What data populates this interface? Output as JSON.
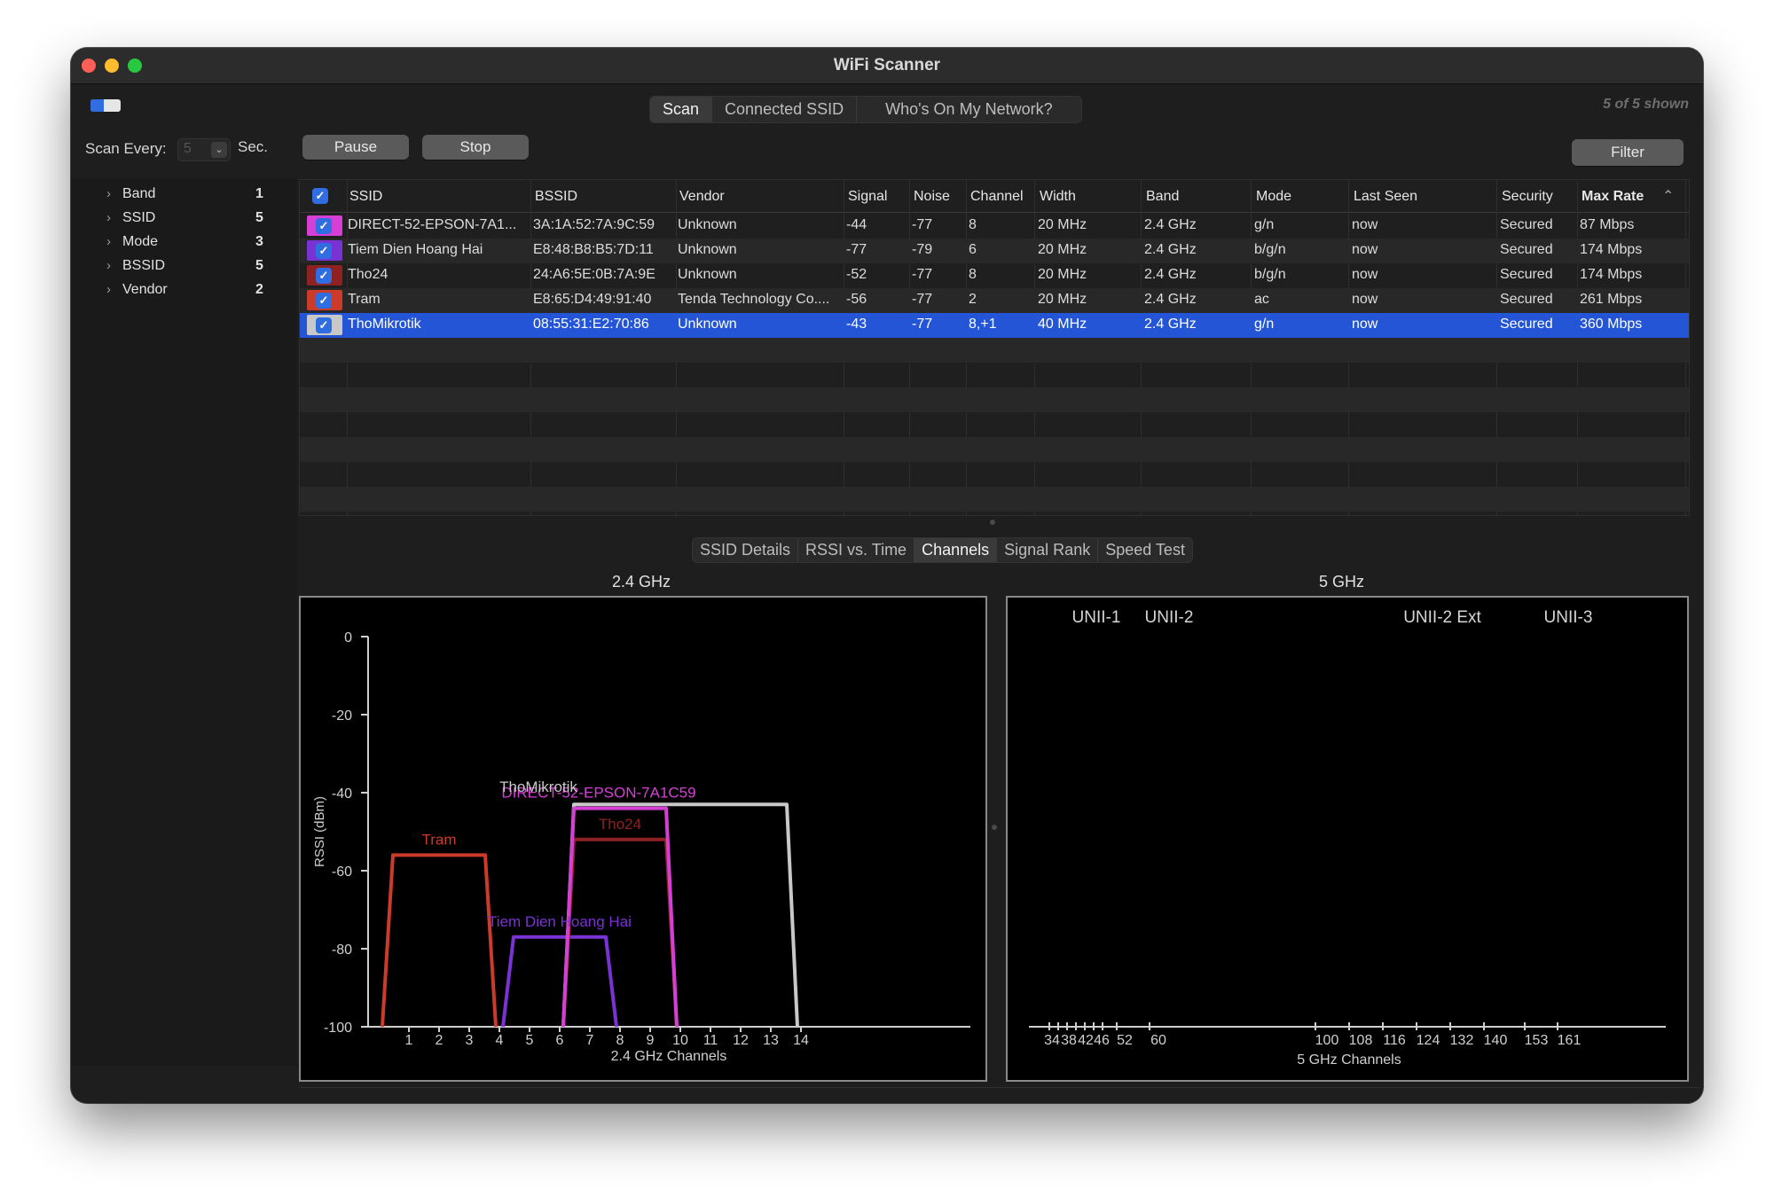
{
  "window": {
    "title": "WiFi Scanner"
  },
  "tabs": [
    {
      "label": "Scan",
      "active": true
    },
    {
      "label": "Connected SSID",
      "active": false
    },
    {
      "label": "Who's On My Network?",
      "active": false
    }
  ],
  "shown_count": "5 of 5 shown",
  "scan": {
    "label": "Scan Every:",
    "value": "5",
    "unit": "Sec."
  },
  "buttons": {
    "pause": "Pause",
    "stop": "Stop",
    "filter": "Filter"
  },
  "facets": [
    {
      "label": "Band",
      "count": "1"
    },
    {
      "label": "SSID",
      "count": "5"
    },
    {
      "label": "Mode",
      "count": "3"
    },
    {
      "label": "BSSID",
      "count": "5"
    },
    {
      "label": "Vendor",
      "count": "2"
    }
  ],
  "table": {
    "columns": [
      "SSID",
      "BSSID",
      "Vendor",
      "Signal",
      "Noise",
      "Channel",
      "Width",
      "Band",
      "Mode",
      "Last Seen",
      "Security",
      "Max Rate"
    ],
    "sorted_column": "Max Rate",
    "rows": [
      {
        "color": "#d63fd6",
        "cells": [
          "DIRECT-52-EPSON-7A1...",
          "3A:1A:52:7A:9C:59",
          "Unknown",
          "-44",
          "-77",
          "8",
          "20 MHz",
          "2.4 GHz",
          "g/n",
          "now",
          "Secured",
          "87 Mbps"
        ]
      },
      {
        "color": "#7b32d4",
        "cells": [
          "Tiem Dien Hoang Hai",
          "E8:48:B8:B5:7D:11",
          "Unknown",
          "-77",
          "-79",
          "6",
          "20 MHz",
          "2.4 GHz",
          "b/g/n",
          "now",
          "Secured",
          "174 Mbps"
        ]
      },
      {
        "color": "#8e2222",
        "cells": [
          "Tho24",
          "24:A6:5E:0B:7A:9E",
          "Unknown",
          "-52",
          "-77",
          "8",
          "20 MHz",
          "2.4 GHz",
          "b/g/n",
          "now",
          "Secured",
          "174 Mbps"
        ]
      },
      {
        "color": "#cc3a2a",
        "cells": [
          "Tram",
          "E8:65:D4:49:91:40",
          "Tenda Technology Co....",
          "-56",
          "-77",
          "2",
          "20 MHz",
          "2.4 GHz",
          "ac",
          "now",
          "Secured",
          "261 Mbps"
        ]
      },
      {
        "color": "#c8c8c8",
        "selected": true,
        "cells": [
          "ThoMikrotik",
          "08:55:31:E2:70:86",
          "Unknown",
          "-43",
          "-77",
          "8,+1",
          "40 MHz",
          "2.4 GHz",
          "g/n",
          "now",
          "Secured",
          "360 Mbps"
        ]
      }
    ]
  },
  "detail_tabs": [
    {
      "label": "SSID Details",
      "active": false
    },
    {
      "label": "RSSI vs. Time",
      "active": false
    },
    {
      "label": "Channels",
      "active": true
    },
    {
      "label": "Signal Rank",
      "active": false
    },
    {
      "label": "Speed Test",
      "active": false
    }
  ],
  "chart_data": [
    {
      "type": "area",
      "title": "2.4 GHz",
      "xlabel": "2.4 GHz Channels",
      "ylabel": "RSSI (dBm)",
      "ylim": [
        -100,
        0
      ],
      "y_ticks": [
        0,
        -20,
        -40,
        -60,
        -80,
        -100
      ],
      "x_ticks": [
        1,
        2,
        3,
        4,
        5,
        6,
        7,
        8,
        9,
        10,
        11,
        12,
        13,
        14
      ],
      "series": [
        {
          "name": "Tram",
          "color": "#cc3a2a",
          "channel_range": [
            0,
            4
          ],
          "rssi": -56
        },
        {
          "name": "Tiem Dien Hoang Hai",
          "color": "#7b32d4",
          "channel_range": [
            4,
            8
          ],
          "rssi": -77
        },
        {
          "name": "Tho24",
          "color": "#8e2222",
          "channel_range": [
            6,
            10
          ],
          "rssi": -52
        },
        {
          "name": "DIRECT-52-EPSON-7A1C59",
          "color": "#d63fd6",
          "channel_range": [
            6,
            10
          ],
          "rssi": -44
        },
        {
          "name": "ThoMikrotik",
          "color": "#c8c8c8",
          "channel_range": [
            6,
            14
          ],
          "rssi": -43
        }
      ]
    },
    {
      "type": "area",
      "title": "5 GHz",
      "xlabel": "5 GHz Channels",
      "bands": [
        "UNII-1",
        "UNII-2",
        "UNII-2 Ext",
        "UNII-3"
      ],
      "x_ticks": [
        "34",
        "38",
        "42",
        "46",
        "52",
        "60",
        "100",
        "108",
        "116",
        "124",
        "132",
        "140",
        "153",
        "161"
      ],
      "series": []
    }
  ]
}
